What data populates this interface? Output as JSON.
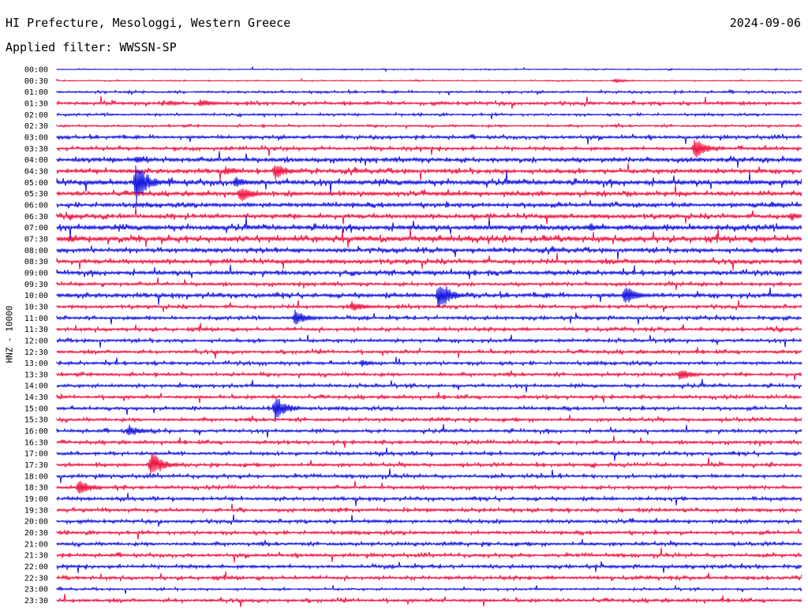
{
  "header": {
    "title": "HI Prefecture, Mesologgi, Western Greece",
    "date": "2024-09-06",
    "filter": "Applied filter: WWSSN-SP"
  },
  "colors": {
    "even_row": "#0000dd",
    "odd_row": "#ee0033",
    "text": "#000000",
    "background": "#ffffff"
  },
  "chart_data": {
    "type": "line",
    "ylabel": "HNZ - 10000",
    "row_labels": [
      "00:00",
      "00:30",
      "01:00",
      "01:30",
      "02:00",
      "02:30",
      "03:00",
      "03:30",
      "04:00",
      "04:30",
      "05:00",
      "05:30",
      "06:00",
      "06:30",
      "07:00",
      "07:30",
      "08:00",
      "08:30",
      "09:00",
      "09:30",
      "10:00",
      "10:30",
      "11:00",
      "11:30",
      "12:00",
      "12:30",
      "13:00",
      "13:30",
      "14:00",
      "14:30",
      "15:00",
      "15:30",
      "16:00",
      "16:30",
      "17:00",
      "17:30",
      "18:00",
      "18:30",
      "19:00",
      "19:30",
      "20:00",
      "20:30",
      "21:00",
      "21:30",
      "22:00",
      "22:30",
      "23:00",
      "23:30"
    ],
    "noise_level": [
      1,
      1,
      2,
      3,
      2,
      2,
      3,
      3,
      4,
      4,
      5,
      4,
      4,
      4,
      5,
      5,
      4,
      4,
      4,
      3,
      4,
      3,
      3,
      3,
      3,
      3,
      3,
      3,
      3,
      3,
      3,
      3,
      3,
      3,
      3,
      3,
      3,
      3,
      3,
      3,
      3,
      3,
      3,
      3,
      3,
      3,
      2,
      3
    ],
    "events": [
      {
        "row": 1,
        "minute": 22.5,
        "amp": 3
      },
      {
        "row": 3,
        "minute": 4.5,
        "amp": 4
      },
      {
        "row": 3,
        "minute": 5.8,
        "amp": 6
      },
      {
        "row": 7,
        "minute": 25.7,
        "amp": 16
      },
      {
        "row": 8,
        "minute": 3.2,
        "amp": 6
      },
      {
        "row": 9,
        "minute": 6.8,
        "amp": 7
      },
      {
        "row": 9,
        "minute": 8.8,
        "amp": 12
      },
      {
        "row": 10,
        "minute": 3.2,
        "amp": 28
      },
      {
        "row": 10,
        "minute": 7.2,
        "amp": 8
      },
      {
        "row": 11,
        "minute": 7.4,
        "amp": 12
      },
      {
        "row": 12,
        "minute": 28.8,
        "amp": 5
      },
      {
        "row": 13,
        "minute": 29.6,
        "amp": 6
      },
      {
        "row": 14,
        "minute": 21.5,
        "amp": 6
      },
      {
        "row": 15,
        "minute": 0.5,
        "amp": 6
      },
      {
        "row": 20,
        "minute": 15.4,
        "amp": 22
      },
      {
        "row": 20,
        "minute": 22.9,
        "amp": 14
      },
      {
        "row": 21,
        "minute": 11.9,
        "amp": 8
      },
      {
        "row": 22,
        "minute": 9.6,
        "amp": 12
      },
      {
        "row": 26,
        "minute": 12.3,
        "amp": 5
      },
      {
        "row": 27,
        "minute": 25.1,
        "amp": 9
      },
      {
        "row": 30,
        "minute": 8.8,
        "amp": 18
      },
      {
        "row": 32,
        "minute": 2.9,
        "amp": 9
      },
      {
        "row": 35,
        "minute": 3.8,
        "amp": 20
      },
      {
        "row": 37,
        "minute": 0.9,
        "amp": 12
      }
    ]
  }
}
